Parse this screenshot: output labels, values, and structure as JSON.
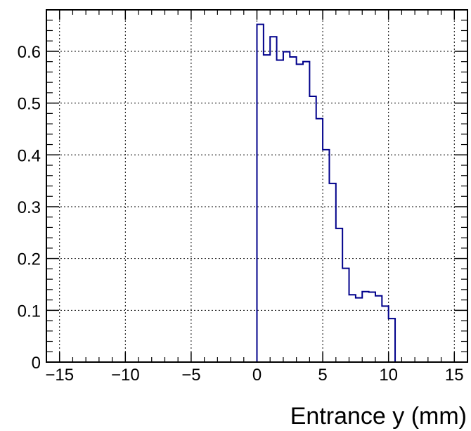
{
  "chart_data": {
    "type": "histogram",
    "title": "",
    "xlabel": "Entrance y (mm)",
    "ylabel": "",
    "xlim": [
      -16,
      16
    ],
    "ylim": [
      0,
      0.68
    ],
    "grid": true,
    "line_color": "#00008b",
    "x_ticks": [
      -15,
      -10,
      -5,
      0,
      5,
      10,
      15
    ],
    "x_tick_labels": [
      "−15",
      "−10",
      "−5",
      "0",
      "5",
      "10",
      "15"
    ],
    "y_ticks": [
      0,
      0.1,
      0.2,
      0.3,
      0.4,
      0.5,
      0.6
    ],
    "y_tick_labels": [
      "0",
      "0.1",
      "0.2",
      "0.3",
      "0.4",
      "0.5",
      "0.6"
    ],
    "bin_width": 0.5,
    "bins_x_start": [
      0,
      0.5,
      1.0,
      1.5,
      2.0,
      2.5,
      3.0,
      3.5,
      4.0,
      4.5,
      5.0,
      5.5,
      6.0,
      6.5,
      7.0,
      7.5,
      8.0,
      8.5,
      9.0,
      9.5,
      10.0,
      10.5
    ],
    "values": [
      0.652,
      0.593,
      0.628,
      0.583,
      0.599,
      0.589,
      0.575,
      0.58,
      0.513,
      0.47,
      0.41,
      0.345,
      0.258,
      0.181,
      0.13,
      0.124,
      0.136,
      0.135,
      0.128,
      0.108,
      0.084,
      0.0
    ]
  }
}
